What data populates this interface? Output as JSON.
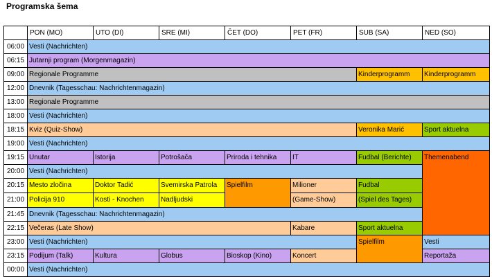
{
  "title": "Programska šema",
  "days": [
    "PON (MO)",
    "UTO (DI)",
    "SRE (MI)",
    "ČET (DO)",
    "PET (FR)",
    "SUB (SA)",
    "NED (SO)"
  ],
  "colors": {
    "news": "#9fcbf3",
    "talk": "#c9a2f0",
    "regional": "#c0c0c0",
    "kids": "#ffc000",
    "entertainment": "#ffcc99",
    "crime": "#ffff00",
    "sport": "#99cc00",
    "themenabend": "#ff6600",
    "spielfilm": "#ff9900"
  },
  "times": [
    "06:00",
    "06:15",
    "09:00",
    "12:00",
    "13:00",
    "18:00",
    "18:15",
    "19:00",
    "19:15",
    "20:00",
    "20:15",
    "21:00",
    "21:45",
    "22:15",
    "23:00",
    "23:15",
    "00:00"
  ],
  "programs": {
    "vesti": "Vesti (Nachrichten)",
    "jutarnji": "Jutarnji program (Morgenmagazin)",
    "regionale_1": "Regionale Programme",
    "kinder_sa": "Kinderprogramm",
    "kinder_so": "Kinderprogramm",
    "dnevnik": "Dnevnik (Tagesschau: Nachrichtenmagazin)",
    "regionale_2": "Regionale Programme",
    "kviz": "Kviz (Quiz-Show)",
    "veronika": "Veronika Marić",
    "sport_1": "Sport aktuelna",
    "unutar": "Unutar",
    "istorija": "Istorija",
    "potrosaca": "Potrošača",
    "priroda": "Priroda i tehnika",
    "it": "IT",
    "fudbal_berichte": "Fudbal (Berichte)",
    "themenabend": "Themenabend",
    "mesto": "Mesto zločina",
    "tadic": "Doktor Tadić",
    "svemirska": "Svemirska Patrola",
    "spielfilm_do": "Spielfilm",
    "milioner": "Milioner",
    "game_show": "(Game-Show)",
    "fudbal": "Fudbal",
    "spiel_tages": "(Spiel des Tages)",
    "policija": "Policija 910",
    "kosti": "Kosti - Knochen",
    "nadljudski": "Nadljudski",
    "veceras": "Večeras (Late Show)",
    "kabare": "Kabare",
    "sport_2": "Sport aktuelna",
    "spielfilm_sa": "Spielfilm",
    "vesti_so": "Vesti",
    "podijum": "Podijum (Talk)",
    "kultura": "Kultura",
    "globus": "Globus",
    "bioskop": "Bioskop (Kino)",
    "koncert": "Koncert",
    "reportaza": "Reportaža"
  }
}
